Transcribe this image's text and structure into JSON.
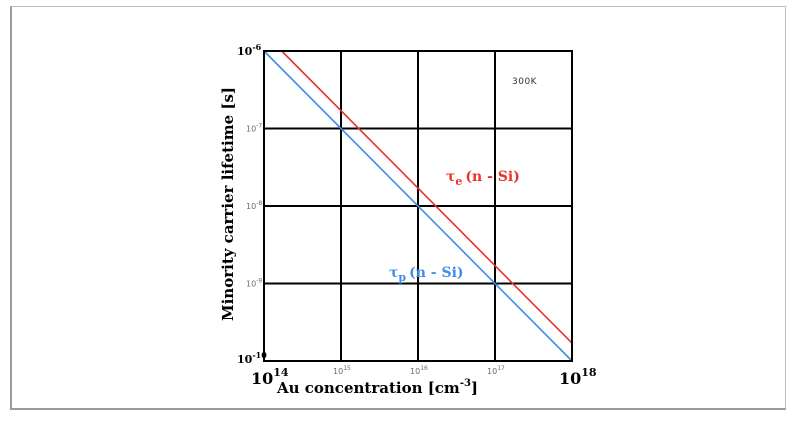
{
  "chart_data": {
    "type": "line",
    "x_scale": "log",
    "y_scale": "log",
    "xlim": [
      100000000000000.0,
      1e+18
    ],
    "ylim": [
      1e-10,
      1e-06
    ],
    "grid": true,
    "xlabel": {
      "text": "Au concentration [cm",
      "sup": "-3",
      "close": "]"
    },
    "ylabel": "Minority carrier lifetime [s]",
    "annotation": "300K",
    "x_ticks": [
      {
        "base": "10",
        "exp": "14",
        "style": "big"
      },
      {
        "base": "10",
        "exp": "15",
        "style": "small"
      },
      {
        "base": "10",
        "exp": "16",
        "style": "small"
      },
      {
        "base": "10",
        "exp": "17",
        "style": "small"
      },
      {
        "base": "10",
        "exp": "18",
        "style": "big"
      }
    ],
    "y_ticks": [
      {
        "base": "10",
        "exp": "-6",
        "style": "mid"
      },
      {
        "base": "10",
        "exp": "-7",
        "style": "small"
      },
      {
        "base": "10",
        "exp": "-8",
        "style": "small"
      },
      {
        "base": "10",
        "exp": "-9",
        "style": "small"
      },
      {
        "base": "10",
        "exp": "-10",
        "style": "mid"
      }
    ],
    "series": [
      {
        "symbol": "τ",
        "sub": "e",
        "text": "(n - Si)",
        "color": "#e8322b",
        "x": [
          170000000000000.0,
          1e+18
        ],
        "y": [
          1e-06,
          1.7e-10
        ]
      },
      {
        "symbol": "τ",
        "sub": "p",
        "text": "(n - Si)",
        "color": "#3d8ee8",
        "x": [
          100000000000000.0,
          1e+18
        ],
        "y": [
          1e-06,
          1e-10
        ]
      }
    ]
  }
}
